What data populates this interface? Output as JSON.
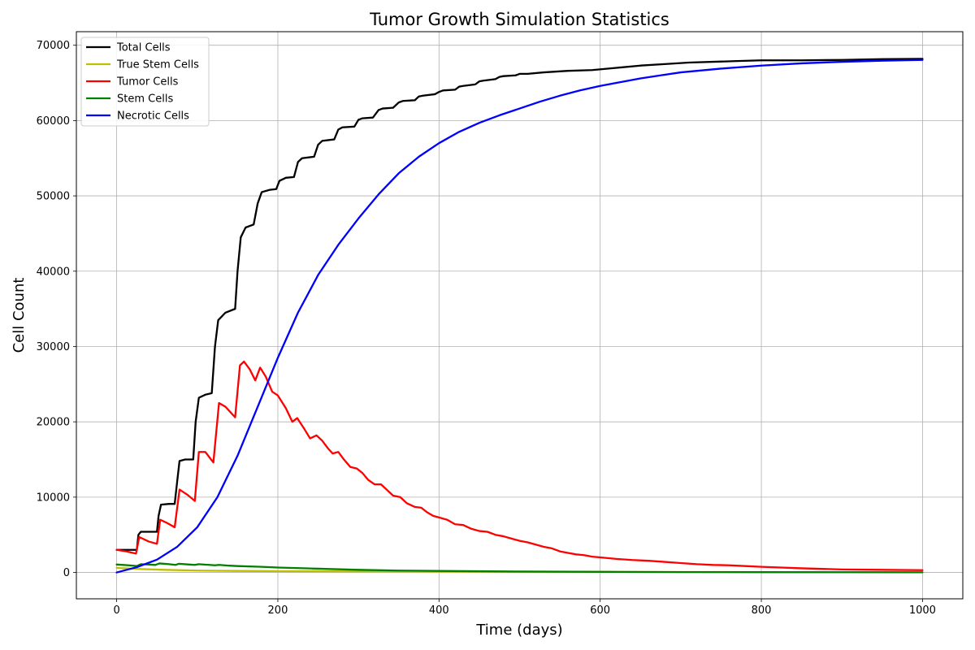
{
  "chart_data": {
    "type": "line",
    "title": "Tumor Growth Simulation Statistics",
    "xlabel": "Time (days)",
    "ylabel": "Cell Count",
    "xlim": [
      -50,
      1050
    ],
    "ylim": [
      -3500,
      71800
    ],
    "xticks": [
      0,
      200,
      400,
      600,
      800,
      1000
    ],
    "yticks": [
      0,
      10000,
      20000,
      30000,
      40000,
      50000,
      60000,
      70000
    ],
    "grid": true,
    "legend_position": "top-left",
    "series": [
      {
        "name": "Total Cells",
        "color": "#000000",
        "points": [
          [
            0,
            3000
          ],
          [
            10,
            3000
          ],
          [
            20,
            3000
          ],
          [
            25,
            3000
          ],
          [
            27,
            5000
          ],
          [
            30,
            5400
          ],
          [
            40,
            5400
          ],
          [
            50,
            5400
          ],
          [
            52,
            7500
          ],
          [
            55,
            9000
          ],
          [
            65,
            9100
          ],
          [
            72,
            9100
          ],
          [
            75,
            12000
          ],
          [
            78,
            14800
          ],
          [
            85,
            15000
          ],
          [
            95,
            15000
          ],
          [
            98,
            20000
          ],
          [
            102,
            23200
          ],
          [
            110,
            23600
          ],
          [
            118,
            23800
          ],
          [
            122,
            30000
          ],
          [
            126,
            33500
          ],
          [
            135,
            34500
          ],
          [
            147,
            35000
          ],
          [
            150,
            40000
          ],
          [
            154,
            44500
          ],
          [
            160,
            45800
          ],
          [
            170,
            46200
          ],
          [
            175,
            49000
          ],
          [
            180,
            50500
          ],
          [
            190,
            50800
          ],
          [
            198,
            50900
          ],
          [
            202,
            52000
          ],
          [
            210,
            52400
          ],
          [
            220,
            52500
          ],
          [
            225,
            54500
          ],
          [
            230,
            55000
          ],
          [
            245,
            55200
          ],
          [
            250,
            56800
          ],
          [
            255,
            57300
          ],
          [
            270,
            57500
          ],
          [
            275,
            58800
          ],
          [
            280,
            59100
          ],
          [
            295,
            59200
          ],
          [
            300,
            60100
          ],
          [
            305,
            60300
          ],
          [
            318,
            60400
          ],
          [
            325,
            61400
          ],
          [
            330,
            61600
          ],
          [
            343,
            61700
          ],
          [
            350,
            62400
          ],
          [
            355,
            62600
          ],
          [
            370,
            62700
          ],
          [
            375,
            63200
          ],
          [
            380,
            63300
          ],
          [
            395,
            63500
          ],
          [
            400,
            63800
          ],
          [
            405,
            64000
          ],
          [
            420,
            64100
          ],
          [
            425,
            64500
          ],
          [
            430,
            64600
          ],
          [
            445,
            64800
          ],
          [
            450,
            65200
          ],
          [
            455,
            65300
          ],
          [
            470,
            65500
          ],
          [
            475,
            65800
          ],
          [
            480,
            65900
          ],
          [
            495,
            66000
          ],
          [
            500,
            66200
          ],
          [
            510,
            66200
          ],
          [
            530,
            66400
          ],
          [
            560,
            66600
          ],
          [
            590,
            66700
          ],
          [
            620,
            67000
          ],
          [
            650,
            67300
          ],
          [
            680,
            67500
          ],
          [
            710,
            67700
          ],
          [
            740,
            67800
          ],
          [
            770,
            67900
          ],
          [
            800,
            68000
          ],
          [
            850,
            68000
          ],
          [
            900,
            68050
          ],
          [
            950,
            68150
          ],
          [
            1000,
            68200
          ]
        ]
      },
      {
        "name": "True Stem Cells",
        "color": "#bfbf00",
        "points": [
          [
            0,
            600
          ],
          [
            30,
            450
          ],
          [
            60,
            350
          ],
          [
            100,
            250
          ],
          [
            150,
            200
          ],
          [
            200,
            170
          ],
          [
            300,
            140
          ],
          [
            400,
            120
          ],
          [
            500,
            100
          ],
          [
            600,
            80
          ],
          [
            700,
            60
          ],
          [
            800,
            50
          ],
          [
            900,
            40
          ],
          [
            1000,
            30
          ]
        ]
      },
      {
        "name": "Tumor Cells",
        "color": "#ff0000",
        "points": [
          [
            0,
            3000
          ],
          [
            12,
            2800
          ],
          [
            24,
            2500
          ],
          [
            28,
            4700
          ],
          [
            40,
            4100
          ],
          [
            50,
            3800
          ],
          [
            54,
            7000
          ],
          [
            62,
            6600
          ],
          [
            72,
            6000
          ],
          [
            78,
            11000
          ],
          [
            88,
            10300
          ],
          [
            97,
            9500
          ],
          [
            102,
            16000
          ],
          [
            110,
            16000
          ],
          [
            120,
            14600
          ],
          [
            127,
            22500
          ],
          [
            135,
            22000
          ],
          [
            147,
            20600
          ],
          [
            153,
            27500
          ],
          [
            158,
            28000
          ],
          [
            165,
            27000
          ],
          [
            172,
            25500
          ],
          [
            178,
            27200
          ],
          [
            185,
            26000
          ],
          [
            193,
            24000
          ],
          [
            200,
            23500
          ],
          [
            210,
            21800
          ],
          [
            218,
            20000
          ],
          [
            224,
            20500
          ],
          [
            232,
            19200
          ],
          [
            240,
            17800
          ],
          [
            248,
            18200
          ],
          [
            255,
            17500
          ],
          [
            262,
            16500
          ],
          [
            268,
            15800
          ],
          [
            275,
            16000
          ],
          [
            282,
            15000
          ],
          [
            290,
            14000
          ],
          [
            298,
            13800
          ],
          [
            305,
            13200
          ],
          [
            312,
            12300
          ],
          [
            320,
            11700
          ],
          [
            328,
            11700
          ],
          [
            335,
            11000
          ],
          [
            343,
            10200
          ],
          [
            352,
            10000
          ],
          [
            360,
            9200
          ],
          [
            370,
            8700
          ],
          [
            378,
            8600
          ],
          [
            385,
            8000
          ],
          [
            393,
            7500
          ],
          [
            400,
            7300
          ],
          [
            410,
            7000
          ],
          [
            420,
            6400
          ],
          [
            430,
            6300
          ],
          [
            440,
            5800
          ],
          [
            450,
            5500
          ],
          [
            460,
            5400
          ],
          [
            470,
            5000
          ],
          [
            480,
            4800
          ],
          [
            490,
            4500
          ],
          [
            500,
            4200
          ],
          [
            510,
            4000
          ],
          [
            520,
            3700
          ],
          [
            530,
            3400
          ],
          [
            540,
            3200
          ],
          [
            550,
            2800
          ],
          [
            560,
            2600
          ],
          [
            570,
            2400
          ],
          [
            580,
            2300
          ],
          [
            590,
            2100
          ],
          [
            600,
            2000
          ],
          [
            620,
            1800
          ],
          [
            640,
            1650
          ],
          [
            660,
            1550
          ],
          [
            680,
            1400
          ],
          [
            700,
            1250
          ],
          [
            720,
            1100
          ],
          [
            740,
            1000
          ],
          [
            760,
            950
          ],
          [
            780,
            850
          ],
          [
            800,
            750
          ],
          [
            850,
            550
          ],
          [
            900,
            400
          ],
          [
            950,
            350
          ],
          [
            1000,
            300
          ]
        ]
      },
      {
        "name": "Stem Cells",
        "color": "#008000",
        "points": [
          [
            0,
            1050
          ],
          [
            15,
            950
          ],
          [
            25,
            850
          ],
          [
            30,
            1100
          ],
          [
            40,
            1050
          ],
          [
            48,
            1000
          ],
          [
            53,
            1200
          ],
          [
            65,
            1100
          ],
          [
            73,
            1000
          ],
          [
            77,
            1150
          ],
          [
            90,
            1050
          ],
          [
            97,
            1000
          ],
          [
            102,
            1100
          ],
          [
            115,
            1000
          ],
          [
            122,
            950
          ],
          [
            127,
            1000
          ],
          [
            140,
            900
          ],
          [
            150,
            850
          ],
          [
            180,
            750
          ],
          [
            200,
            650
          ],
          [
            250,
            500
          ],
          [
            300,
            350
          ],
          [
            350,
            250
          ],
          [
            400,
            200
          ],
          [
            500,
            120
          ],
          [
            600,
            80
          ],
          [
            700,
            50
          ],
          [
            800,
            40
          ],
          [
            900,
            30
          ],
          [
            1000,
            20
          ]
        ]
      },
      {
        "name": "Necrotic Cells",
        "color": "#0000ff",
        "points": [
          [
            0,
            0
          ],
          [
            25,
            700
          ],
          [
            50,
            1700
          ],
          [
            75,
            3400
          ],
          [
            100,
            6000
          ],
          [
            125,
            10000
          ],
          [
            150,
            15500
          ],
          [
            175,
            22000
          ],
          [
            200,
            28500
          ],
          [
            225,
            34500
          ],
          [
            250,
            39500
          ],
          [
            275,
            43500
          ],
          [
            300,
            47000
          ],
          [
            325,
            50200
          ],
          [
            350,
            53000
          ],
          [
            375,
            55200
          ],
          [
            400,
            57000
          ],
          [
            425,
            58500
          ],
          [
            450,
            59700
          ],
          [
            475,
            60700
          ],
          [
            500,
            61600
          ],
          [
            525,
            62500
          ],
          [
            550,
            63300
          ],
          [
            575,
            64000
          ],
          [
            600,
            64600
          ],
          [
            625,
            65100
          ],
          [
            650,
            65600
          ],
          [
            675,
            66000
          ],
          [
            700,
            66400
          ],
          [
            750,
            66900
          ],
          [
            800,
            67300
          ],
          [
            850,
            67600
          ],
          [
            900,
            67800
          ],
          [
            950,
            67950
          ],
          [
            1000,
            68050
          ]
        ]
      }
    ]
  }
}
